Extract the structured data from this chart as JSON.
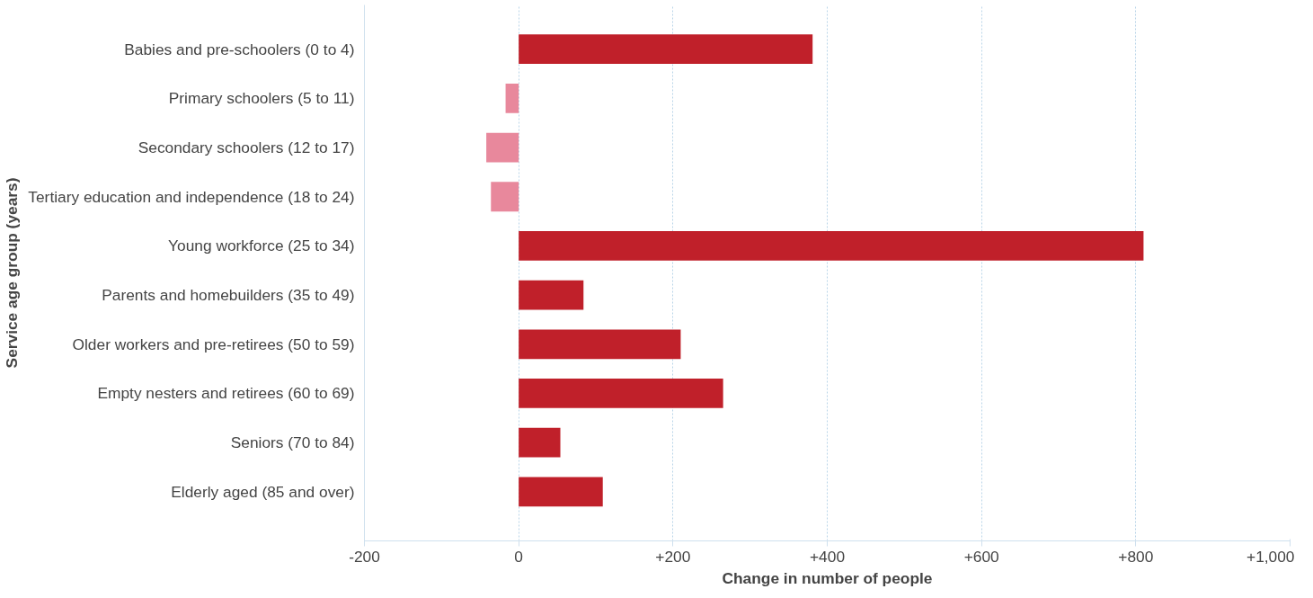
{
  "chart_data": {
    "type": "bar",
    "orientation": "horizontal",
    "xlabel": "Change in number of people",
    "ylabel": "Service age group (years)",
    "categories": [
      "Babies and pre-schoolers (0 to 4)",
      "Primary schoolers (5 to 11)",
      "Secondary schoolers (12 to 17)",
      "Tertiary education and independence (18 to 24)",
      "Young workforce (25 to 34)",
      "Parents and homebuilders (35 to 49)",
      "Older workers and pre-retirees (50 to 59)",
      "Empty nesters and retirees (60 to 69)",
      "Seniors (70 to 84)",
      "Elderly aged (85 and over)"
    ],
    "values": [
      381,
      -17,
      -42,
      -36,
      810,
      84,
      210,
      265,
      54,
      109
    ],
    "colors": [
      "#c0202a",
      "#e8889c",
      "#e8889c",
      "#e8889c",
      "#c0202a",
      "#c0202a",
      "#c0202a",
      "#c0202a",
      "#c0202a",
      "#c0202a"
    ],
    "xlim": [
      -200,
      1000
    ],
    "xticks": [
      -200,
      0,
      {
        "value": 200,
        "label": "+200"
      },
      {
        "value": 400,
        "label": "+400"
      },
      {
        "value": 600,
        "label": "+600"
      },
      {
        "value": 800,
        "label": "+800"
      },
      {
        "value": 1000,
        "label": "+1,000"
      }
    ],
    "grid": "x"
  }
}
